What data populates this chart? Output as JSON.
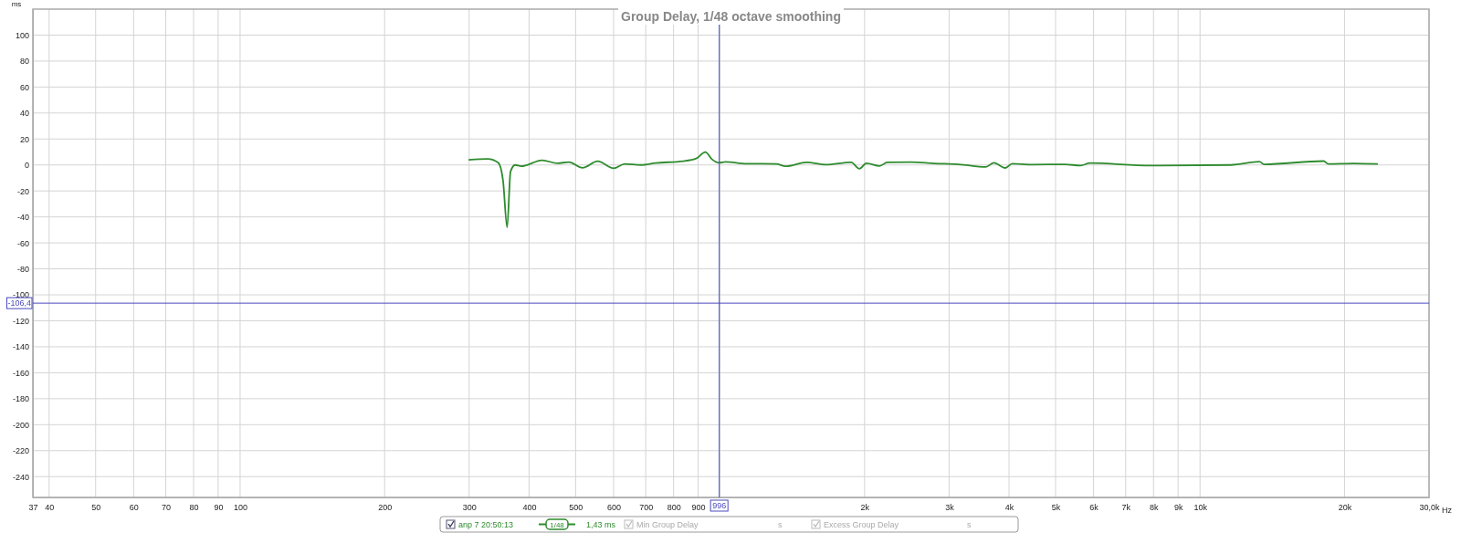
{
  "chart_data": {
    "type": "line",
    "title": "Group Delay, 1/48 octave smoothing",
    "ylabel": "ms",
    "xlabel": "Hz",
    "log": "x",
    "xlim": [
      37,
      30000
    ],
    "xticks": [
      37,
      40,
      50,
      60,
      70,
      80,
      90,
      100,
      200,
      300,
      400,
      500,
      600,
      700,
      800,
      900,
      {
        "value": 1000,
        "label": null
      },
      {
        "value": 2000,
        "label": "2k"
      },
      {
        "value": 3000,
        "label": "3k"
      },
      {
        "value": 4000,
        "label": "4k"
      },
      {
        "value": 5000,
        "label": "5k"
      },
      {
        "value": 6000,
        "label": "6k"
      },
      {
        "value": 7000,
        "label": "7k"
      },
      {
        "value": 8000,
        "label": "8k"
      },
      {
        "value": 9000,
        "label": "9k"
      },
      {
        "value": 10000,
        "label": "10k"
      },
      {
        "value": 20000,
        "label": "20k"
      },
      {
        "value": 30000,
        "label": "30,0k"
      }
    ],
    "ylim": [
      -256,
      120
    ],
    "yticks": [
      100,
      80,
      60,
      40,
      20,
      0,
      -20,
      -40,
      -60,
      -80,
      -100,
      -120,
      -140,
      -160,
      -180,
      -200,
      -220,
      -240
    ],
    "grid": true,
    "legend": "bottom",
    "series": [
      {
        "name": "anp 7 20:50:13",
        "color": "#2e8b2e",
        "x": [
          300,
          328,
          345,
          353,
          360,
          366,
          374,
          385,
          426,
          458,
          484,
          517,
          556,
          600,
          633,
          684,
          734,
          837,
          894,
          932,
          961,
          996,
          1025,
          1134,
          1310,
          1368,
          1515,
          1660,
          1876,
          1951,
          2018,
          2150,
          2230,
          2500,
          2800,
          3140,
          3580,
          3720,
          3930,
          4060,
          4470,
          5230,
          5640,
          5900,
          7880,
          11600,
          13300,
          13600,
          18100,
          18500,
          20900,
          23400
        ],
        "values": [
          4,
          4.7,
          1.7,
          -12,
          -48,
          -5,
          0,
          -1,
          3.6,
          1.3,
          2.2,
          -2.2,
          2.9,
          -2.6,
          0.8,
          0,
          1.5,
          2.9,
          5.2,
          9.9,
          4.5,
          1.7,
          2.4,
          1,
          0.8,
          -1,
          2,
          0.3,
          2,
          -2.9,
          1.3,
          -0.8,
          2,
          2.2,
          1.2,
          0.5,
          -1.5,
          1.7,
          -2.3,
          1,
          0.3,
          0.5,
          -0.5,
          1.5,
          -0.5,
          0,
          2.5,
          0.5,
          3,
          0.8,
          1.2,
          0.8
        ]
      }
    ],
    "ref_lines": [
      {
        "axis": "x",
        "value": 996,
        "label": "996",
        "color": "#4a4ac0"
      },
      {
        "axis": "y",
        "value": -106.4,
        "label": "-106,4",
        "color": "#4a4ac0"
      }
    ],
    "annotations": [
      "1/48",
      "1,43 ms",
      "Min Group Delay",
      "s",
      "Excess Group Delay",
      "s"
    ]
  }
}
